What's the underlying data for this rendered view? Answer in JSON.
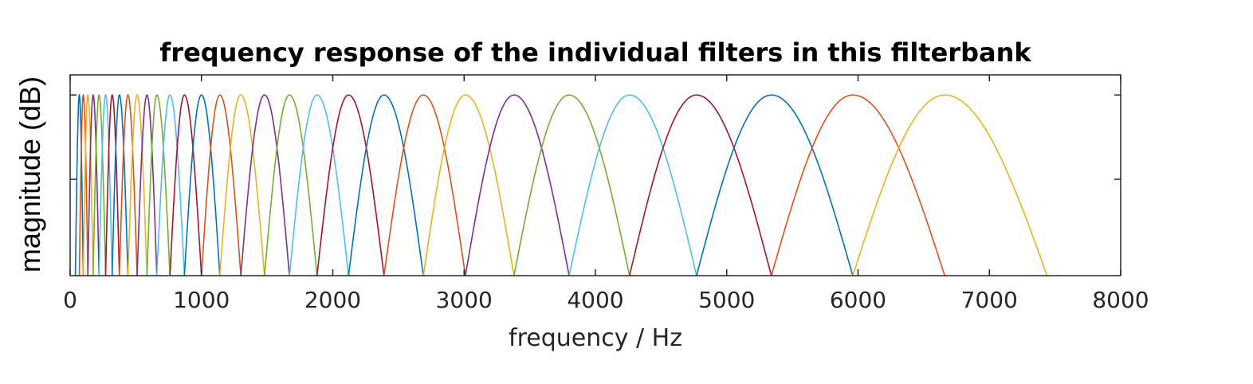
{
  "chart_data": {
    "type": "line",
    "title": "frequency response of the individual filters in this filterbank",
    "xlabel": "frequency / Hz",
    "ylabel": "magnitude (dB)",
    "xlim": [
      0,
      8000
    ],
    "ylim": [
      0,
      1
    ],
    "xticks": [
      0,
      1000,
      2000,
      3000,
      4000,
      5000,
      6000,
      7000,
      8000
    ],
    "xticklabels": [
      "0",
      "1000",
      "2000",
      "3000",
      "4000",
      "5000",
      "6000",
      "7000",
      "8000"
    ],
    "yticks": [
      0.48,
      0.9
    ],
    "yticklabels": [
      "",
      ""
    ],
    "grid": false,
    "legend": "none",
    "color_cycle": [
      "#0072BD",
      "#D95319",
      "#EDB120",
      "#7E2F8E",
      "#77AC30",
      "#4DBEEE",
      "#A2142F"
    ],
    "series_description": "Each filter is a raised-cosine shaped band; values list lower edge, center, upper edge in Hz (peak magnitude at center).",
    "filters": [
      {
        "low": 40,
        "center": 70,
        "high": 100
      },
      {
        "low": 70,
        "center": 100,
        "high": 135
      },
      {
        "low": 100,
        "center": 135,
        "high": 175
      },
      {
        "low": 135,
        "center": 175,
        "high": 220
      },
      {
        "low": 175,
        "center": 220,
        "high": 270
      },
      {
        "low": 220,
        "center": 270,
        "high": 320
      },
      {
        "low": 270,
        "center": 320,
        "high": 375
      },
      {
        "low": 320,
        "center": 375,
        "high": 440
      },
      {
        "low": 375,
        "center": 440,
        "high": 510
      },
      {
        "low": 440,
        "center": 510,
        "high": 585
      },
      {
        "low": 510,
        "center": 585,
        "high": 660
      },
      {
        "low": 585,
        "center": 660,
        "high": 760
      },
      {
        "low": 660,
        "center": 760,
        "high": 870
      },
      {
        "low": 760,
        "center": 870,
        "high": 1000
      },
      {
        "low": 870,
        "center": 1000,
        "high": 1140
      },
      {
        "low": 1000,
        "center": 1140,
        "high": 1300
      },
      {
        "low": 1140,
        "center": 1300,
        "high": 1480
      },
      {
        "low": 1300,
        "center": 1480,
        "high": 1670
      },
      {
        "low": 1480,
        "center": 1670,
        "high": 1880
      },
      {
        "low": 1670,
        "center": 1880,
        "high": 2120
      },
      {
        "low": 1880,
        "center": 2120,
        "high": 2390
      },
      {
        "low": 2120,
        "center": 2390,
        "high": 2690
      },
      {
        "low": 2390,
        "center": 2690,
        "high": 3010
      },
      {
        "low": 2690,
        "center": 3010,
        "high": 3380
      },
      {
        "low": 3010,
        "center": 3380,
        "high": 3800
      },
      {
        "low": 3380,
        "center": 3800,
        "high": 4260
      },
      {
        "low": 3800,
        "center": 4260,
        "high": 4770
      },
      {
        "low": 4260,
        "center": 4770,
        "high": 5340
      },
      {
        "low": 4770,
        "center": 5340,
        "high": 5960
      },
      {
        "low": 5340,
        "center": 5960,
        "high": 6660
      },
      {
        "low": 5960,
        "center": 6660,
        "high": 7440
      }
    ]
  }
}
